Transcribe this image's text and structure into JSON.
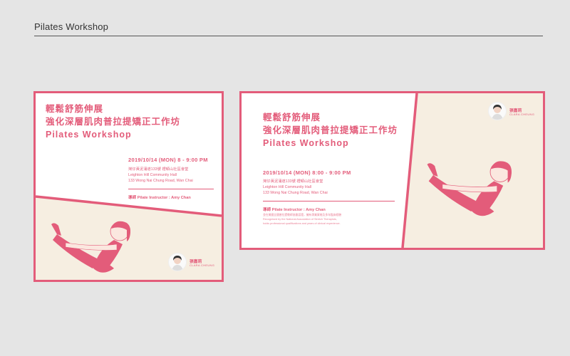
{
  "page": {
    "title": "Pilates Workshop"
  },
  "colors": {
    "accent": "#e35c7a",
    "cream": "#f6eee1",
    "background": "#e5e5e5"
  },
  "posters": [
    {
      "title_zh_1": "輕鬆舒筋伸展",
      "title_zh_2": "強化深層肌肉普拉提矯正工作坊",
      "title_en": "Pilates Workshop",
      "datetime": "2019/10/14 (MON)  8 - 9:00 PM",
      "venue_zh": "灣仔黃泥涌道133號 禮頓山社區會堂",
      "venue_en_1": "Leighton Hill Community Hall",
      "venue_en_2": "133 Wong Nai Chung Road, Wan Chai",
      "instructor": "導師 Pilate Instructor : Amy Chan",
      "brand_name": "張嘉莉",
      "brand_en": "CLARA CHEUNG"
    },
    {
      "title_zh_1": "輕鬆舒筋伸展",
      "title_zh_2": "強化深層肌肉普拉提矯正工作坊",
      "title_en": "Pilates Workshop",
      "datetime": "2019/10/14 (MON)  8:00 - 9:00 PM",
      "venue_zh": "灣仔黃泥涌道133號 禮頓山社區會堂",
      "venue_en_1": "Leighton Hill Community Hall",
      "venue_en_2": "133 Wong Nai Chung Road, Wan Chai",
      "instructor": "導師 Pilate Instructor : Amy Chan",
      "note_zh": "並在美國全國普拉提教師協會認證，擁有專業資格及多年臨床經驗",
      "note_en_1": "Recognised by the National Association of Stretch Therapists,",
      "note_en_2": "holds professional qualifications and years of clinical experience.",
      "brand_name": "張嘉莉",
      "brand_en": "CLARA CHEUNG"
    }
  ]
}
